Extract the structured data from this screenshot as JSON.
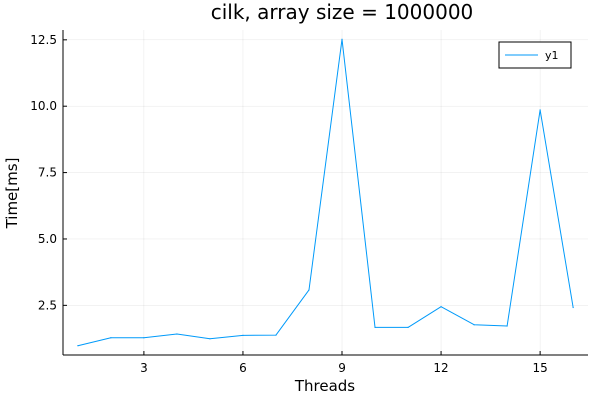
{
  "chart_data": {
    "type": "line",
    "title": "cilk, array size = 1000000",
    "xlabel": "Threads",
    "ylabel": "Time[ms]",
    "xlim": [
      0.55,
      16.45
    ],
    "ylim": [
      0.63,
      12.87
    ],
    "xticks": [
      3,
      6,
      9,
      12,
      15
    ],
    "xtick_labels": [
      "3",
      "6",
      "9",
      "12",
      "15"
    ],
    "yticks": [
      2.5,
      5.0,
      7.5,
      10.0,
      12.5
    ],
    "ytick_labels": [
      "2.5",
      "5.0",
      "7.5",
      "10.0",
      "12.5"
    ],
    "grid": true,
    "legend_position": "top-right",
    "series": [
      {
        "name": "y1",
        "color": "#009AFA",
        "x": [
          1,
          2,
          3,
          4,
          5,
          6,
          7,
          8,
          9,
          10,
          11,
          12,
          13,
          14,
          15,
          16
        ],
        "values": [
          0.98,
          1.28,
          1.28,
          1.42,
          1.24,
          1.37,
          1.38,
          3.08,
          12.52,
          1.67,
          1.67,
          2.45,
          1.77,
          1.72,
          9.86,
          2.42
        ]
      }
    ]
  }
}
